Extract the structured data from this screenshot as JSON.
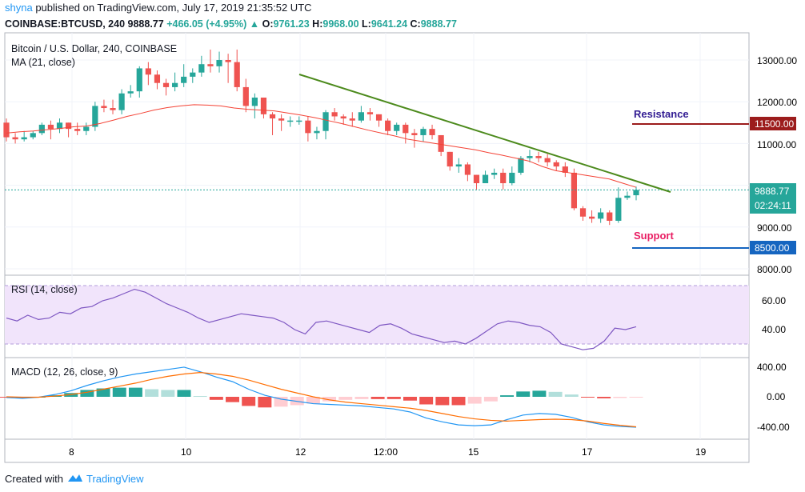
{
  "header": {
    "author": "shyna",
    "published_text": "published on TradingView.com, July 17, 2019 21:35:52 UTC",
    "symbol_line": "COINBASE:BTCUSD, 240",
    "last": "9888.77",
    "change": "+466.05 (+4.95%)",
    "o_label": "O:",
    "o": "9761.23",
    "h_label": "H:",
    "h": "9968.00",
    "l_label": "L:",
    "l": "9641.24",
    "c_label": "C:",
    "c": "9888.77"
  },
  "chart": {
    "title": "Bitcoin / U.S. Dollar, 240, COINBASE",
    "ma_label": "MA (21, close)",
    "rsi_label": "RSI (14, close)",
    "macd_label": "MACD (12, 26, close, 9)",
    "annotations": {
      "resistance": "Resistance",
      "support": "Support"
    },
    "price_axis": [
      "13000.00",
      "12000.00",
      "11000.00",
      "9000.00",
      "8000.00"
    ],
    "price_tags": {
      "resistance": "11500.00",
      "current": "9888.77",
      "countdown": "02:24:11",
      "support": "8500.00"
    },
    "rsi_axis": [
      "60.00",
      "40.00"
    ],
    "macd_axis": [
      "400.00",
      "0.00",
      "-400.00"
    ],
    "time_axis": [
      "8",
      "10",
      "12",
      "12:00",
      "15",
      "17",
      "19"
    ],
    "colors": {
      "up": "#26a69a",
      "down": "#ef5350",
      "ma": "#f44336",
      "trendline": "#4c8a1c",
      "resistance_text": "#311b92",
      "resistance_line": "#9c1c1c",
      "support_text": "#e91e63",
      "support_line": "#1565c0",
      "rsi": "#7e57c2",
      "macd": "#2196f3",
      "signal": "#ff6d00"
    }
  },
  "footer": {
    "created_with": "Created with",
    "brand": "TradingView"
  },
  "chart_data": {
    "type": "candlestick",
    "title": "Bitcoin / U.S. Dollar, 240, COINBASE",
    "price_ylim": [
      7800,
      13700
    ],
    "current_price": 9888.77,
    "resistance_level": 11500,
    "support_level": 8500,
    "candles": [
      [
        11500,
        11150,
        11600,
        11050
      ],
      [
        11150,
        11100,
        11250,
        11000
      ],
      [
        11100,
        11150,
        11300,
        11050
      ],
      [
        11150,
        11250,
        11300,
        11100
      ],
      [
        11250,
        11450,
        11500,
        11200
      ],
      [
        11450,
        11350,
        11550,
        11100
      ],
      [
        11350,
        11500,
        11600,
        11250
      ],
      [
        11500,
        11350,
        11500,
        11150
      ],
      [
        11350,
        11300,
        11500,
        11200
      ],
      [
        11300,
        11400,
        11500,
        11200
      ],
      [
        11400,
        11900,
        12000,
        11300
      ],
      [
        11900,
        11850,
        12050,
        11750
      ],
      [
        11850,
        11800,
        12050,
        11700
      ],
      [
        11800,
        12200,
        12300,
        11700
      ],
      [
        12200,
        12250,
        12400,
        12100
      ],
      [
        12250,
        12800,
        12850,
        12100
      ],
      [
        12800,
        12650,
        12950,
        12400
      ],
      [
        12650,
        12450,
        12750,
        12300
      ],
      [
        12450,
        12350,
        12550,
        12150
      ],
      [
        12350,
        12450,
        12700,
        12250
      ],
      [
        12450,
        12600,
        12900,
        12350
      ],
      [
        12600,
        12700,
        12800,
        12450
      ],
      [
        12700,
        12900,
        13100,
        12600
      ],
      [
        12900,
        12850,
        13250,
        12700
      ],
      [
        12850,
        13000,
        13200,
        12700
      ],
      [
        13000,
        12950,
        13150,
        12450
      ],
      [
        12950,
        12350,
        13250,
        12250
      ],
      [
        12350,
        11900,
        12550,
        11750
      ],
      [
        11900,
        12100,
        12200,
        11600
      ],
      [
        12100,
        11700,
        12100,
        11600
      ],
      [
        11700,
        11600,
        11750,
        11200
      ],
      [
        11600,
        11550,
        11700,
        11300
      ],
      [
        11550,
        11550,
        11650,
        11400
      ],
      [
        11550,
        11550,
        11650,
        11450
      ],
      [
        11550,
        11250,
        11650,
        11050
      ],
      [
        11250,
        11300,
        11400,
        11100
      ],
      [
        11300,
        11750,
        11800,
        11100
      ],
      [
        11750,
        11650,
        11850,
        11550
      ],
      [
        11650,
        11600,
        11700,
        11450
      ],
      [
        11600,
        11550,
        11750,
        11400
      ],
      [
        11550,
        11750,
        11900,
        11500
      ],
      [
        11750,
        11700,
        11850,
        11550
      ],
      [
        11700,
        11550,
        11700,
        11400
      ],
      [
        11550,
        11300,
        11600,
        11200
      ],
      [
        11300,
        11450,
        11500,
        11200
      ],
      [
        11450,
        11250,
        11500,
        11000
      ],
      [
        11250,
        11200,
        11350,
        10900
      ],
      [
        11200,
        11350,
        11400,
        11050
      ],
      [
        11350,
        11200,
        11450,
        11100
      ],
      [
        11200,
        10800,
        11200,
        10700
      ],
      [
        10800,
        10450,
        10800,
        10350
      ],
      [
        10450,
        10500,
        10650,
        10300
      ],
      [
        10500,
        10250,
        10550,
        10100
      ],
      [
        10250,
        10050,
        10250,
        9900
      ],
      [
        10050,
        10250,
        10350,
        10050
      ],
      [
        10250,
        10300,
        10400,
        10150
      ],
      [
        10300,
        10050,
        10400,
        9900
      ],
      [
        10050,
        10300,
        10450,
        10000
      ],
      [
        10300,
        10650,
        10700,
        10250
      ],
      [
        10650,
        10700,
        10850,
        10550
      ],
      [
        10700,
        10650,
        10800,
        10550
      ],
      [
        10650,
        10550,
        10750,
        10450
      ],
      [
        10550,
        10450,
        10600,
        10350
      ],
      [
        10450,
        10300,
        10550,
        10200
      ],
      [
        10300,
        9450,
        10400,
        9400
      ],
      [
        9450,
        9250,
        9500,
        9150
      ],
      [
        9250,
        9200,
        9400,
        9100
      ],
      [
        9200,
        9350,
        9450,
        9100
      ],
      [
        9350,
        9150,
        9400,
        9050
      ],
      [
        9150,
        9700,
        9950,
        9100
      ],
      [
        9700,
        9750,
        9850,
        9650
      ],
      [
        9761.23,
        9888.77,
        9968,
        9641.24
      ]
    ],
    "ma_21": [
      11250,
      11280,
      11300,
      11330,
      11360,
      11400,
      11420,
      11480,
      11560,
      11650,
      11720,
      11800,
      11860,
      11900,
      11930,
      11920,
      11900,
      11850,
      11820,
      11800,
      11780,
      11730,
      11680,
      11620,
      11550,
      11480,
      11400,
      11320,
      11250,
      11180,
      11100,
      11050,
      11000,
      10950,
      10900,
      10850,
      10780,
      10720,
      10650,
      10580,
      10450,
      10350,
      10300,
      10250,
      10200,
      10150,
      10050,
      9950
    ],
    "rsi_14": [
      48,
      46,
      50,
      47,
      48,
      52,
      51,
      55,
      56,
      60,
      62,
      65,
      68,
      66,
      62,
      58,
      55,
      52,
      48,
      45,
      47,
      49,
      51,
      50,
      49,
      48,
      45,
      40,
      37,
      45,
      46,
      44,
      42,
      40,
      38,
      43,
      44,
      41,
      37,
      35,
      33,
      31,
      32,
      30,
      34,
      39,
      44,
      46,
      45,
      43,
      42,
      38,
      30,
      28,
      26,
      27,
      32,
      41,
      40,
      42
    ],
    "rsi_axis_values": [
      60,
      40
    ],
    "macd_line": [
      -10,
      -20,
      -5,
      30,
      80,
      150,
      210,
      260,
      300,
      330,
      360,
      390,
      330,
      260,
      200,
      100,
      20,
      -30,
      -60,
      -90,
      -100,
      -110,
      -120,
      -140,
      -160,
      -200,
      -280,
      -330,
      -370,
      -380,
      -370,
      -300,
      -240,
      -220,
      -230,
      -270,
      -330,
      -370,
      -390,
      -400
    ],
    "signal_line": [
      0,
      -5,
      -5,
      10,
      30,
      60,
      100,
      140,
      180,
      230,
      270,
      300,
      320,
      300,
      270,
      220,
      160,
      100,
      50,
      0,
      -40,
      -70,
      -90,
      -110,
      -130,
      -150,
      -180,
      -220,
      -260,
      -290,
      -310,
      -320,
      -310,
      -300,
      -295,
      -300,
      -320,
      -350,
      -375,
      -395
    ],
    "histogram": [
      -10,
      -15,
      0,
      20,
      50,
      90,
      110,
      120,
      120,
      100,
      90,
      90,
      10,
      -40,
      -70,
      -120,
      -140,
      -130,
      -110,
      -90,
      -60,
      -40,
      -30,
      -30,
      -30,
      -50,
      -100,
      -110,
      -110,
      -90,
      -60,
      20,
      70,
      80,
      65,
      30,
      -10,
      -20,
      -15,
      -5
    ],
    "macd_ylim": [
      -500,
      450
    ],
    "time_ticks": [
      "8",
      "10",
      "12",
      "12:00",
      "15",
      "17",
      "19"
    ]
  }
}
